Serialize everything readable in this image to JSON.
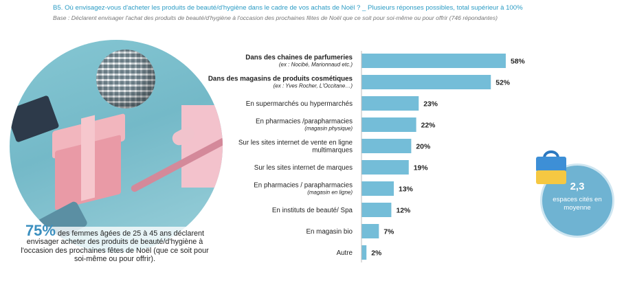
{
  "header": {
    "question": "B5. Où envisagez-vous d'acheter les produits de beauté/d'hygiène dans le cadre de vos achats de Noël ? _ Plusieurs réponses possibles, total supérieur à 100%",
    "base": "Base : Déclarent envisager l'achat des produits de beauté/d'hygiène à l'occasion des prochaines fêtes de Noël que ce soit pour soi-même ou pour offrir (746 répondantes)"
  },
  "callout": {
    "percent": "75%",
    "text_line1": " des femmes âgées de 25 à 45 ans déclarent",
    "text_line2": "envisager acheter des produits de beauté/d'hygiène à",
    "text_line3": "l'occasion des prochaines fêtes de Noël (que ce soit pour",
    "text_line4": "soi-même ou pour offrir)."
  },
  "badge": {
    "number": "2,3",
    "text_line1": "espaces cités en",
    "text_line2": "moyenne"
  },
  "colors": {
    "bar": "#74bdd8",
    "accent": "#2a9bc4",
    "badge": "#6fb3d2"
  },
  "chart_data": {
    "type": "bar",
    "orientation": "horizontal",
    "categories": [
      "Dans des chaines de parfumeries",
      "Dans des magasins de produits cosmétiques",
      "En supermarchés ou hypermarchés",
      "En pharmacies /parapharmacies",
      "Sur les sites internet de vente en ligne multimarques",
      "Sur les sites internet de marques",
      "En pharmacies / parapharmacies",
      "En instituts de beauté/ Spa",
      "En magasin bio",
      "Autre"
    ],
    "label_lines": [
      [
        "Dans des chaines de parfumeries"
      ],
      [
        "Dans des magasins de produits cosmétiques"
      ],
      [
        "En supermarchés ou hypermarchés"
      ],
      [
        "En pharmacies /parapharmacies"
      ],
      [
        "Sur les sites internet de vente en ligne",
        "multimarques"
      ],
      [
        "Sur les sites internet de marques"
      ],
      [
        "En pharmacies / parapharmacies"
      ],
      [
        "En instituts de beauté/ Spa"
      ],
      [
        "En magasin bio"
      ],
      [
        "Autre"
      ]
    ],
    "sublabels": [
      "(ex : Nocibé, Marionnaud etc.)",
      "(ex : Yves Rocher, L'Occitane…)",
      "",
      "(magasin physique)",
      "",
      "",
      "(magasin en ligne)",
      "",
      "",
      ""
    ],
    "bold": [
      true,
      true,
      false,
      false,
      false,
      false,
      false,
      false,
      false,
      false
    ],
    "values": [
      58,
      52,
      23,
      22,
      20,
      19,
      13,
      12,
      7,
      2
    ],
    "value_labels": [
      "58%",
      "52%",
      "23%",
      "22%",
      "20%",
      "19%",
      "13%",
      "12%",
      "7%",
      "2%"
    ],
    "xlim": [
      0,
      100
    ],
    "grid": false,
    "legend": "none"
  }
}
